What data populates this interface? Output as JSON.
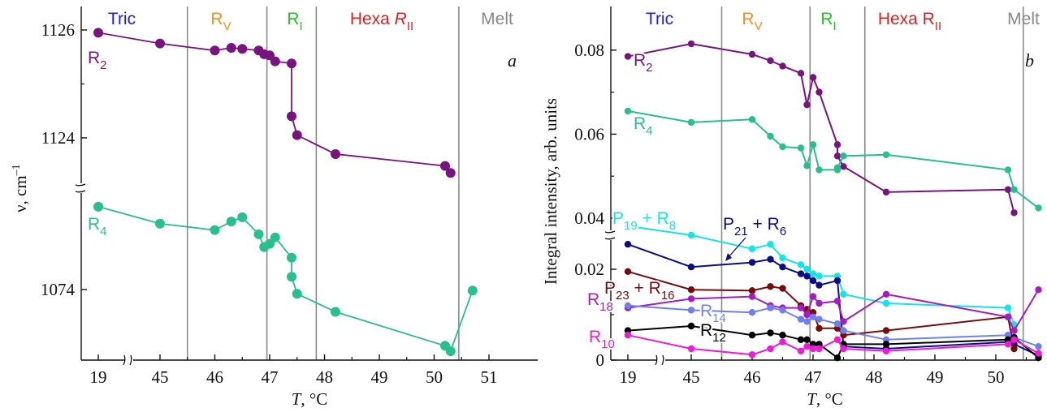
{
  "x_tick_labels": [
    "19",
    "45",
    "46",
    "47",
    "48",
    "49",
    "50",
    "51"
  ],
  "x_axis_label": {
    "var": "T",
    "unit": ", °C"
  },
  "chart_data": [
    {
      "type": "scatter",
      "panel_label": "a",
      "xlabel": "T, °C",
      "ylabel": {
        "base": "ν, cm",
        "sup": "–1"
      },
      "x_tick_labels": [
        "19",
        "45",
        "46",
        "47",
        "48",
        "49",
        "50",
        "51"
      ],
      "y_tick_labels": [
        "1126",
        "1124",
        "1074"
      ],
      "x_axis_break": true,
      "y_axis_break": true,
      "phase_boundaries_C": [
        45.5,
        46.95,
        47.85,
        50.45
      ],
      "phases": [
        {
          "label": "Tric",
          "sub": "",
          "color": "#1f1fd6"
        },
        {
          "label": "R",
          "sub": "V",
          "color": "#ff8c1a"
        },
        {
          "label": "R",
          "sub": "I",
          "color": "#22c322"
        },
        {
          "label": "Hexa ",
          "italic": "R",
          "sub": "II",
          "color": "#e01e1e"
        },
        {
          "label": "Melt",
          "sub": "",
          "color": "#888888"
        }
      ],
      "series": [
        {
          "name": "R",
          "sub": "2",
          "color": "#7a127f",
          "unit": "cm-1",
          "x": [
            19,
            45,
            46,
            46.3,
            46.5,
            46.8,
            46.9,
            47.0,
            47.1,
            47.4,
            47.4,
            47.5,
            48.2,
            50.2,
            50.3
          ],
          "y": [
            1125.95,
            1125.75,
            1125.62,
            1125.67,
            1125.65,
            1125.62,
            1125.55,
            1125.53,
            1125.42,
            1125.38,
            1124.4,
            1124.05,
            1123.7,
            1123.48,
            1123.35
          ]
        },
        {
          "name": "R",
          "sub": "4",
          "color": "#26c08f",
          "unit": "cm-1",
          "x": [
            19,
            45,
            46,
            46.3,
            46.5,
            46.8,
            46.9,
            47.0,
            47.1,
            47.4,
            47.4,
            47.5,
            48.2,
            50.2,
            50.3,
            50.7
          ],
          "y": [
            1081.8,
            1080.2,
            1079.6,
            1080.4,
            1080.8,
            1079.2,
            1078.0,
            1078.3,
            1078.9,
            1077.0,
            1075.2,
            1073.6,
            1071.9,
            1068.7,
            1068.2,
            1073.9
          ]
        }
      ]
    },
    {
      "type": "scatter",
      "panel_label": "b",
      "xlabel": "T, °C",
      "ylabel": "Integral intensity, arb. units",
      "x_tick_labels": [
        "19",
        "45",
        "46",
        "47",
        "48",
        "49",
        "50",
        "51"
      ],
      "y_tick_labels": [
        "0",
        "0.02",
        "0.04",
        "0.06",
        "0.08"
      ],
      "x_axis_break": true,
      "y_axis_break": true,
      "phase_boundaries_C": [
        45.5,
        46.95,
        47.85,
        50.45
      ],
      "phases": [
        {
          "label": "Tric",
          "sub": "",
          "color": "#1f1fd6"
        },
        {
          "label": "R",
          "sub": "V",
          "color": "#ff8c1a"
        },
        {
          "label": "R",
          "sub": "I",
          "color": "#22c322"
        },
        {
          "label": "Hexa R",
          "sub": "II",
          "color": "#e01e1e"
        },
        {
          "label": "Melt",
          "sub": "",
          "color": "#888888"
        }
      ],
      "series": [
        {
          "name": "R",
          "sub": "2",
          "color": "#7a127f",
          "x": [
            19,
            45,
            46,
            46.3,
            46.5,
            46.8,
            46.9,
            47.0,
            47.1,
            47.4,
            47.4,
            47.5,
            48.2,
            50.2,
            50.3
          ],
          "y": [
            0.0785,
            0.0815,
            0.079,
            0.0775,
            0.0762,
            0.0745,
            0.067,
            0.0735,
            0.07,
            0.0575,
            0.0548,
            0.0523,
            0.0462,
            0.0468,
            0.0413
          ]
        },
        {
          "name": "R",
          "sub": "4",
          "color": "#26c08f",
          "x": [
            19,
            45,
            46,
            46.3,
            46.5,
            46.8,
            46.9,
            47.0,
            47.1,
            47.4,
            47.4,
            47.5,
            48.2,
            50.2,
            50.3,
            50.7
          ],
          "y": [
            0.0655,
            0.0628,
            0.0635,
            0.0595,
            0.057,
            0.0567,
            0.0525,
            0.0575,
            0.0515,
            0.0515,
            0.052,
            0.0548,
            0.0551,
            0.0515,
            0.0468,
            0.0335
          ]
        },
        {
          "name": "P",
          "sub": "19",
          "name2": "R",
          "sub2": "8",
          "color": "#12e5e5",
          "x": [
            19,
            45,
            46,
            46.3,
            46.5,
            46.8,
            46.9,
            47.0,
            47.1,
            47.4,
            47.5,
            48.2,
            50.2,
            50.3
          ],
          "y": [
            0.0295,
            0.0275,
            0.0245,
            0.0255,
            0.0225,
            0.021,
            0.02,
            0.019,
            0.0185,
            0.0185,
            0.0145,
            0.0125,
            0.0115,
            0.0078
          ]
        },
        {
          "name": "P",
          "sub": "21",
          "name2": "R",
          "sub2": "6",
          "color": "#0c0c8a",
          "x": [
            19,
            45,
            46,
            46.3,
            46.5,
            46.8,
            46.9,
            47.0,
            47.1,
            47.4,
            47.5,
            48.2,
            50.2,
            50.3,
            50.7
          ],
          "y": [
            0.0255,
            0.0205,
            0.0215,
            0.0222,
            0.0205,
            0.019,
            0.0185,
            0.0175,
            0.0165,
            0.0175,
            0.003,
            0.0025,
            0.004,
            0.0035,
            0.001
          ]
        },
        {
          "name": "P",
          "sub": "23",
          "name2": "R",
          "sub2": "16",
          "color": "#7a0a0a",
          "x": [
            19,
            45,
            46,
            46.3,
            46.5,
            46.8,
            46.9,
            47.0,
            47.1,
            47.4,
            47.5,
            48.2,
            50.2,
            50.3
          ],
          "y": [
            0.0195,
            0.0155,
            0.0153,
            0.0162,
            0.0158,
            0.012,
            0.0112,
            0.0105,
            0.007,
            0.007,
            0.0055,
            0.0065,
            0.0095,
            0.0025
          ]
        },
        {
          "name": "R",
          "sub": "18",
          "color": "#a51bc6",
          "x": [
            19,
            45,
            46,
            46.3,
            46.5,
            46.8,
            46.9,
            47.0,
            47.1,
            47.4,
            47.5,
            48.2,
            50.2,
            50.3,
            50.7
          ],
          "y": [
            0.0115,
            0.0135,
            0.014,
            0.012,
            0.0115,
            0.0115,
            0.01,
            0.014,
            0.0125,
            0.013,
            0.0085,
            0.0145,
            0.0095,
            0.0065,
            0.0155
          ]
        },
        {
          "name": "R",
          "sub": "14",
          "color": "#6f7ff0",
          "x": [
            19,
            45,
            46,
            46.3,
            46.5,
            46.8,
            46.9,
            47.0,
            47.1,
            47.4,
            47.5,
            48.2,
            50.2,
            50.3,
            50.7
          ],
          "y": [
            0.012,
            0.011,
            0.0105,
            0.0115,
            0.011,
            0.009,
            0.0085,
            0.0095,
            0.009,
            0.008,
            0.0065,
            0.0045,
            0.0055,
            0.005,
            0.003
          ]
        },
        {
          "name": "R",
          "sub": "12",
          "color": "#000000",
          "x": [
            19,
            45,
            46,
            46.3,
            46.5,
            46.8,
            46.9,
            47.0,
            47.1,
            47.4,
            47.5,
            48.2,
            50.2,
            50.3,
            50.7
          ],
          "y": [
            0.0065,
            0.0075,
            0.0055,
            0.006,
            0.0055,
            0.0045,
            0.0045,
            0.0035,
            0.0035,
            0.0005,
            0.0035,
            0.0035,
            0.0045,
            0.005,
            0.0005
          ]
        },
        {
          "name": "R",
          "sub": "10",
          "color": "#f01ad6",
          "x": [
            19,
            45,
            46,
            46.3,
            46.5,
            46.8,
            46.9,
            47.0,
            47.1,
            47.4,
            47.5,
            48.2,
            50.2,
            50.3,
            50.7
          ],
          "y": [
            0.0055,
            0.0025,
            0.0012,
            0.0025,
            0.004,
            0.002,
            0.003,
            0.0025,
            0.0025,
            0.0045,
            0.0025,
            0.002,
            0.0035,
            0.0045,
            0.0015
          ]
        }
      ]
    }
  ]
}
